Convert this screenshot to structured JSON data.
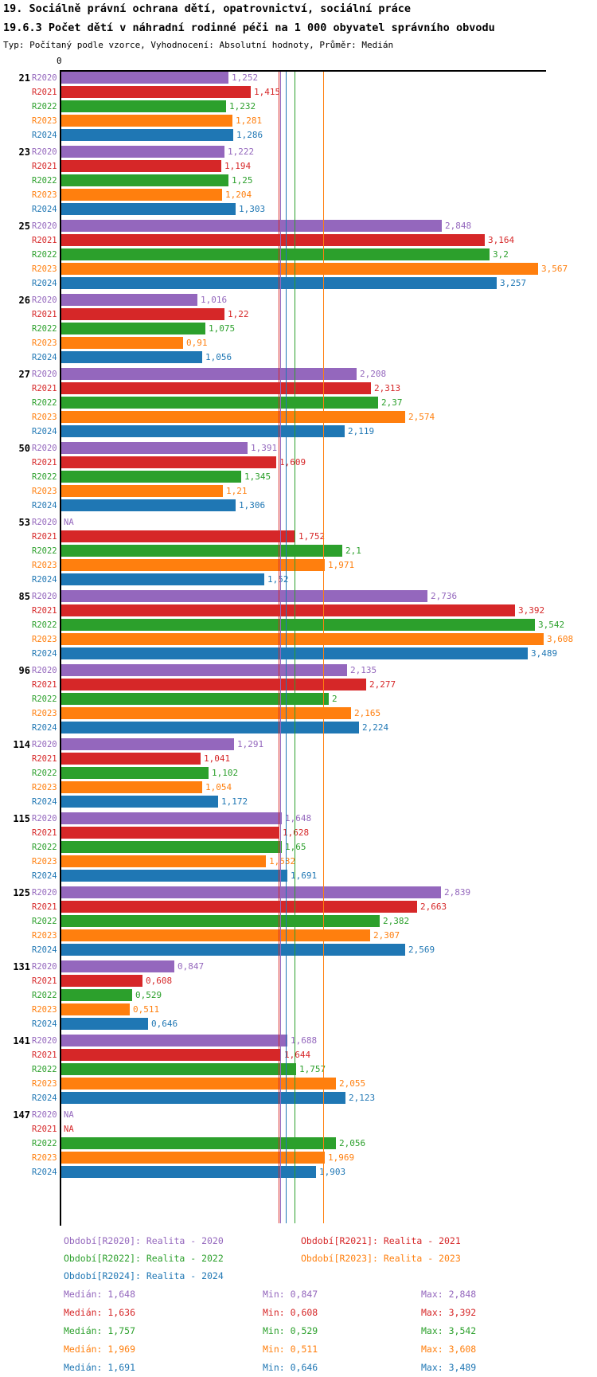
{
  "header": {
    "title1": "19. Sociálně právní ochrana dětí, opatrovnictví, sociální práce",
    "title2": "19.6.3 Počet dětí v náhradní rodinné péči na 1 000 obyvatel správního obvodu",
    "subtitle": "Typ: Počítaný podle vzorce, Vyhodnocení: Absolutní hodnoty, Průměr: Medián"
  },
  "axis": {
    "zero_label": "0"
  },
  "chart_data": {
    "type": "bar",
    "orientation": "horizontal",
    "na_text": "NA",
    "series": [
      "R2020",
      "R2021",
      "R2022",
      "R2023",
      "R2024"
    ],
    "series_colors": {
      "R2020": "#9467bd",
      "R2021": "#d62728",
      "R2022": "#2ca02c",
      "R2023": "#ff7f0e",
      "R2024": "#1f77b4"
    },
    "groups": [
      {
        "label": "21",
        "values": {
          "R2020": "1,252",
          "R2021": "1,415",
          "R2022": "1,232",
          "R2023": "1,281",
          "R2024": "1,286"
        }
      },
      {
        "label": "23",
        "values": {
          "R2020": "1,222",
          "R2021": "1,194",
          "R2022": "1,25",
          "R2023": "1,204",
          "R2024": "1,303"
        }
      },
      {
        "label": "25",
        "values": {
          "R2020": "2,848",
          "R2021": "3,164",
          "R2022": "3,2",
          "R2023": "3,567",
          "R2024": "3,257"
        }
      },
      {
        "label": "26",
        "values": {
          "R2020": "1,016",
          "R2021": "1,22",
          "R2022": "1,075",
          "R2023": "0,91",
          "R2024": "1,056"
        }
      },
      {
        "label": "27",
        "values": {
          "R2020": "2,208",
          "R2021": "2,313",
          "R2022": "2,37",
          "R2023": "2,574",
          "R2024": "2,119"
        }
      },
      {
        "label": "50",
        "values": {
          "R2020": "1,391",
          "R2021": "1,609",
          "R2022": "1,345",
          "R2023": "1,21",
          "R2024": "1,306"
        }
      },
      {
        "label": "53",
        "values": {
          "R2020": null,
          "R2021": "1,752",
          "R2022": "2,1",
          "R2023": "1,971",
          "R2024": "1,52"
        }
      },
      {
        "label": "85",
        "values": {
          "R2020": "2,736",
          "R2021": "3,392",
          "R2022": "3,542",
          "R2023": "3,608",
          "R2024": "3,489"
        }
      },
      {
        "label": "96",
        "values": {
          "R2020": "2,135",
          "R2021": "2,277",
          "R2022": "2",
          "R2023": "2,165",
          "R2024": "2,224"
        }
      },
      {
        "label": "114",
        "values": {
          "R2020": "1,291",
          "R2021": "1,041",
          "R2022": "1,102",
          "R2023": "1,054",
          "R2024": "1,172"
        }
      },
      {
        "label": "115",
        "values": {
          "R2020": "1,648",
          "R2021": "1,628",
          "R2022": "1,65",
          "R2023": "1,532",
          "R2024": "1,691"
        }
      },
      {
        "label": "125",
        "values": {
          "R2020": "2,839",
          "R2021": "2,663",
          "R2022": "2,382",
          "R2023": "2,307",
          "R2024": "2,569"
        }
      },
      {
        "label": "131",
        "values": {
          "R2020": "0,847",
          "R2021": "0,608",
          "R2022": "0,529",
          "R2023": "0,511",
          "R2024": "0,646"
        }
      },
      {
        "label": "141",
        "values": {
          "R2020": "1,688",
          "R2021": "1,644",
          "R2022": "1,757",
          "R2023": "2,055",
          "R2024": "2,123"
        }
      },
      {
        "label": "147",
        "values": {
          "R2020": null,
          "R2021": null,
          "R2022": "2,056",
          "R2023": "1,969",
          "R2024": "1,903"
        }
      }
    ],
    "medians": {
      "R2020": "1,648",
      "R2021": "1,636",
      "R2022": "1,757",
      "R2023": "1,969",
      "R2024": "1,691"
    }
  },
  "legend": [
    {
      "series": "R2020",
      "text": "Období[R2020]: Realita - 2020"
    },
    {
      "series": "R2021",
      "text": "Období[R2021]: Realita - 2021"
    },
    {
      "series": "R2022",
      "text": "Období[R2022]: Realita - 2022"
    },
    {
      "series": "R2023",
      "text": "Období[R2023]: Realita - 2023"
    },
    {
      "series": "R2024",
      "text": "Období[R2024]: Realita - 2024"
    }
  ],
  "stats": [
    {
      "series": "R2020",
      "median": "Medián: 1,648",
      "min": "Min: 0,847",
      "max": "Max: 2,848"
    },
    {
      "series": "R2021",
      "median": "Medián: 1,636",
      "min": "Min: 0,608",
      "max": "Max: 3,392"
    },
    {
      "series": "R2022",
      "median": "Medián: 1,757",
      "min": "Min: 0,529",
      "max": "Max: 3,542"
    },
    {
      "series": "R2023",
      "median": "Medián: 1,969",
      "min": "Min: 0,511",
      "max": "Max: 3,608"
    },
    {
      "series": "R2024",
      "median": "Medián: 1,691",
      "min": "Min: 0,646",
      "max": "Max: 3,489"
    }
  ]
}
